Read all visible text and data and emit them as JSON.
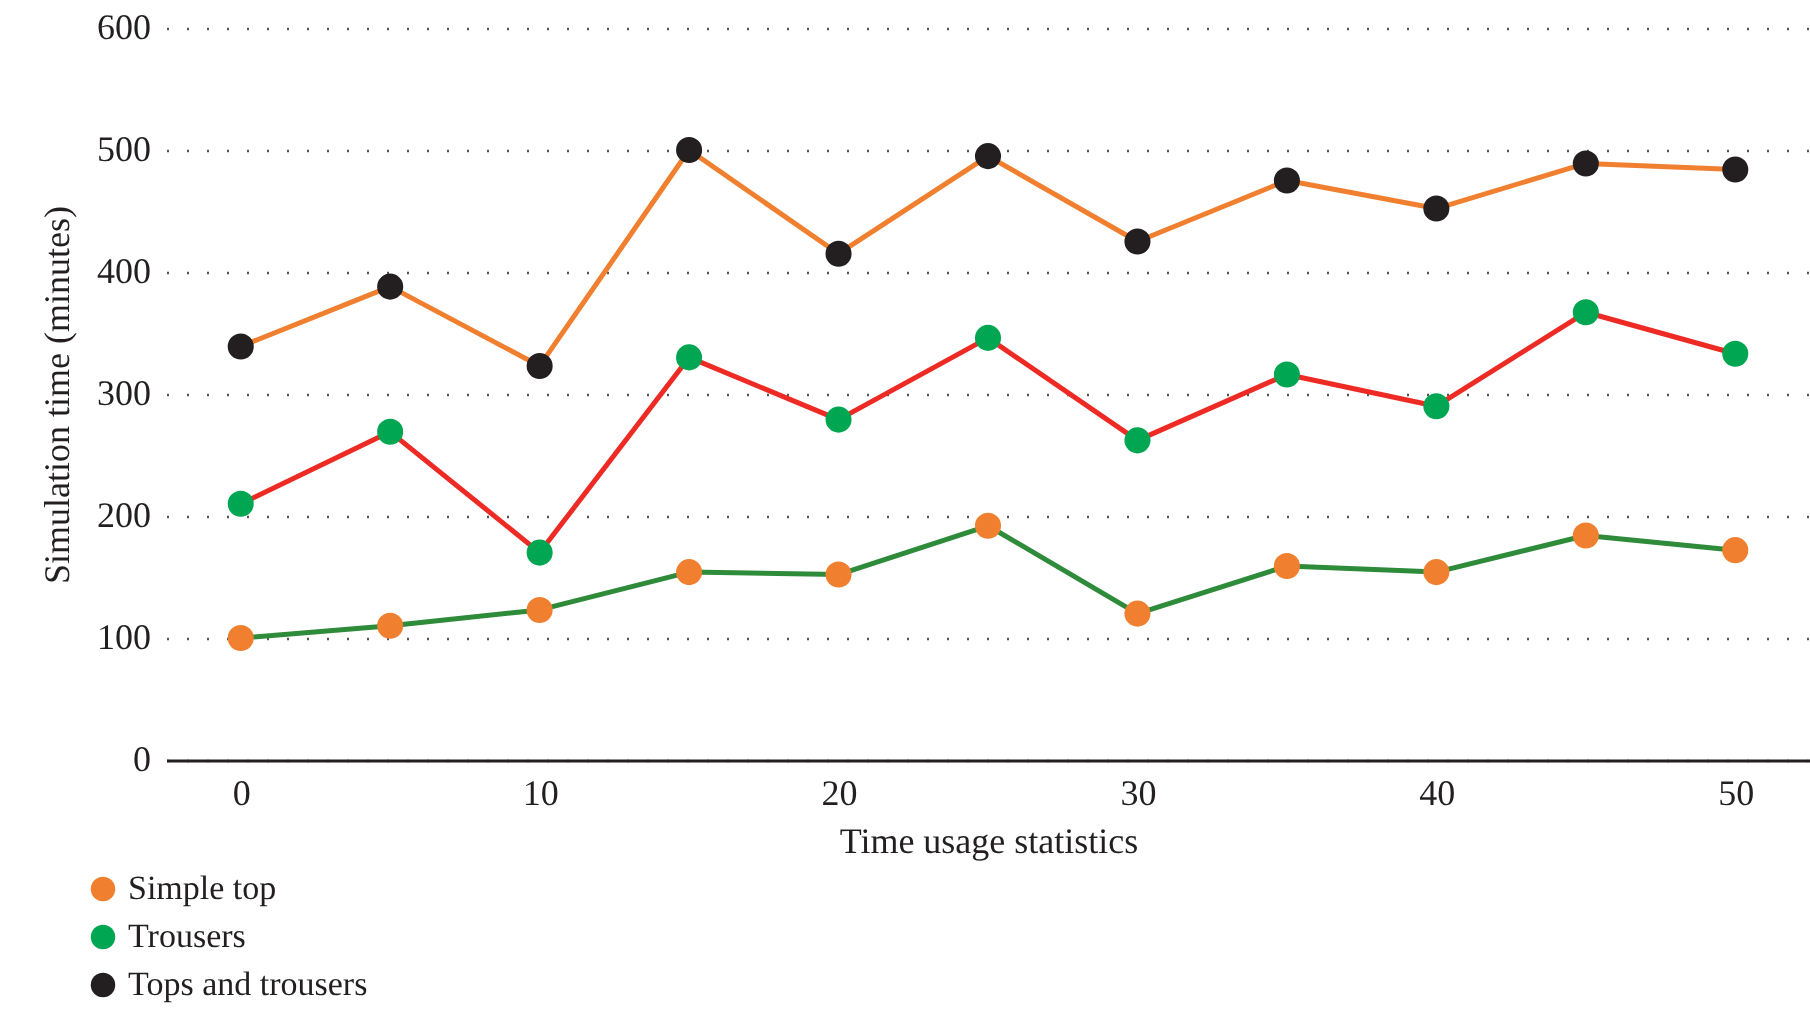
{
  "chart_data": {
    "type": "line",
    "xlabel": "Time usage statistics",
    "ylabel": "Simulation time (minutes)",
    "x": [
      0,
      5,
      10,
      15,
      20,
      25,
      30,
      35,
      40,
      45,
      50
    ],
    "series": [
      {
        "name": "Simple top",
        "color": "#2e8b3a",
        "colors": [
          "#f08030",
          "#f08030",
          "#f08030",
          "#f08030",
          "#f08030",
          "#f08030",
          "#f08030",
          "#f08030",
          "#f08030",
          "#f08030",
          "#f08030"
        ],
        "values": [
          100,
          110,
          123,
          154,
          152,
          192,
          120,
          159,
          154,
          184,
          172
        ]
      },
      {
        "name": "Trousers",
        "color": "#ee2a24",
        "colors": [
          "#00a651",
          "#00a651",
          "#00a651",
          "#00a651",
          "#00a651",
          "#00a651",
          "#00a651",
          "#00a651",
          "#00a651",
          "#00a651",
          "#00a651"
        ],
        "values": [
          210,
          269,
          170,
          330,
          279,
          346,
          262,
          316,
          290,
          367,
          333
        ]
      },
      {
        "name": "Tops and trousers",
        "color": "#f08030",
        "colors": [
          "#231f20",
          "#231f20",
          "#231f20",
          "#231f20",
          "#231f20",
          "#231f20",
          "#231f20",
          "#231f20",
          "#231f20",
          "#231f20",
          "#231f20"
        ],
        "values": [
          339,
          388,
          323,
          500,
          415,
          495,
          425,
          475,
          452,
          489,
          484
        ]
      }
    ],
    "xlim": [
      -2.5,
      52.5
    ],
    "xticks": [
      0,
      10,
      20,
      30,
      40,
      50
    ],
    "ylim": [
      0,
      600
    ],
    "yticks": [
      0,
      100,
      200,
      300,
      400,
      500,
      600
    ],
    "grid": "y",
    "legend": "bottom left",
    "marker": "circle",
    "line_style": "solid"
  }
}
